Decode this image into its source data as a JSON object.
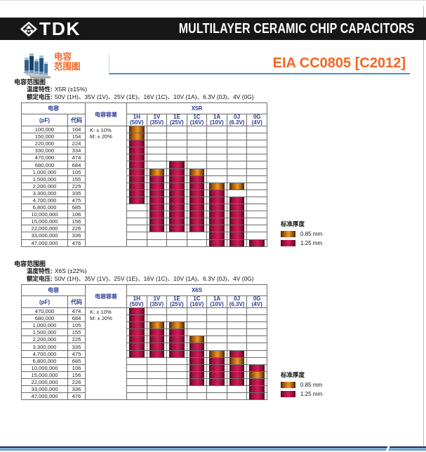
{
  "header": {
    "brand": "TDK",
    "bar_title": "MULTILAYER CERAMIC CHIP CAPACITORS"
  },
  "subheader": {
    "icon_caption_line1": "电容",
    "icon_caption_line2": "范围图",
    "page_title": "EIA CC0805 [C2012]"
  },
  "legend": {
    "title": "标准厚度",
    "items": [
      {
        "label": "0.85 mm",
        "key": "orange"
      },
      {
        "label": "1.25 mm",
        "key": "crimson"
      }
    ]
  },
  "colors": {
    "accent_orange": "#f26522",
    "header_navy": "#2b3a91",
    "thickness_085_orange": "#e1831c",
    "thickness_125_crimson": "#c91750",
    "header_bar_black": "#171717",
    "footer_blue": "#5c95c9"
  },
  "sections": [
    {
      "heading": "电容范围图",
      "lines": [
        {
          "label": "温度特性:",
          "value": "X5R (±15%)"
        },
        {
          "label": "额定电压:",
          "value": "50V (1H)、35V (1V)、25V (1E)、16V (1C)、10V (1A)、6.3V (0J)、4V (0G)"
        }
      ],
      "table": {
        "cap_header": "电容",
        "pf_header": "(pF)",
        "code_header": "代码",
        "tol_header": "电容容差",
        "series_header": "X5R",
        "volt_cols": [
          [
            "1H",
            "(50V)"
          ],
          [
            "1V",
            "(35V)"
          ],
          [
            "1E",
            "(25V)"
          ],
          [
            "1C",
            "(16V)"
          ],
          [
            "1A",
            "(10V)"
          ],
          [
            "0J",
            "(6.3V)"
          ],
          [
            "0G",
            "(4V)"
          ]
        ],
        "tolerances": [
          "K: ± 10%",
          "M: ± 20%"
        ],
        "rows": [
          [
            "100,000",
            "104"
          ],
          [
            "150,000",
            "154"
          ],
          [
            "220,000",
            "224"
          ],
          [
            "330,000",
            "334"
          ],
          [
            "470,000",
            "474"
          ],
          [
            "680,000",
            "684"
          ],
          [
            "1,000,000",
            "105"
          ],
          [
            "1,500,000",
            "155"
          ],
          [
            "2,200,000",
            "225"
          ],
          [
            "3,300,000",
            "335"
          ],
          [
            "4,700,000",
            "475"
          ],
          [
            "6,800,000",
            "685"
          ],
          [
            "10,000,000",
            "106"
          ],
          [
            "15,000,000",
            "156"
          ],
          [
            "22,000,000",
            "226"
          ],
          [
            "33,000,000",
            "336"
          ],
          [
            "47,000,000",
            "476"
          ]
        ],
        "bars": [
          {
            "col": 0,
            "segments": [
              {
                "from": 1,
                "to": 2,
                "thickness": "0.85"
              },
              {
                "from": 3,
                "to": 11,
                "thickness": "1.25"
              }
            ]
          },
          {
            "col": 1,
            "segments": [
              {
                "from": 7,
                "to": 7,
                "thickness": "0.85"
              },
              {
                "from": 8,
                "to": 15,
                "thickness": "1.25"
              }
            ]
          },
          {
            "col": 2,
            "segments": [
              {
                "from": 6,
                "to": 15,
                "thickness": "1.25"
              }
            ]
          },
          {
            "col": 3,
            "segments": [
              {
                "from": 7,
                "to": 7,
                "thickness": "0.85"
              },
              {
                "from": 8,
                "to": 15,
                "thickness": "1.25"
              }
            ]
          },
          {
            "col": 4,
            "segments": [
              {
                "from": 9,
                "to": 9,
                "thickness": "0.85"
              },
              {
                "from": 10,
                "to": 17,
                "thickness": "1.25"
              }
            ]
          },
          {
            "col": 5,
            "segments": [
              {
                "from": 9,
                "to": 9,
                "thickness": "0.85"
              },
              {
                "from": 11,
                "to": 17,
                "thickness": "1.25"
              }
            ]
          },
          {
            "col": 6,
            "segments": [
              {
                "from": 17,
                "to": 17,
                "thickness": "1.25"
              }
            ]
          }
        ]
      }
    },
    {
      "heading": "电容范围图",
      "lines": [
        {
          "label": "温度特性:",
          "value": "X6S (±22%)"
        },
        {
          "label": "额定电压:",
          "value": "50V (1H)、35V (1V)、25V (1E)、16V (1C)、10V (1A)、6.3V (0J)、4V (0G)"
        }
      ],
      "table": {
        "cap_header": "电容",
        "pf_header": "(pF)",
        "code_header": "代码",
        "tol_header": "电容容差",
        "series_header": "X6S",
        "volt_cols": [
          [
            "1H",
            "(50V)"
          ],
          [
            "1V",
            "(35V)"
          ],
          [
            "1E",
            "(25V)"
          ],
          [
            "1C",
            "(16V)"
          ],
          [
            "1A",
            "(10V)"
          ],
          [
            "0J",
            "(6.3V)"
          ],
          [
            "0G",
            "(4V)"
          ]
        ],
        "tolerances": [
          "K: ± 10%",
          "M: ± 20%"
        ],
        "rows": [
          [
            "470,000",
            "474"
          ],
          [
            "680,000",
            "684"
          ],
          [
            "1,000,000",
            "105"
          ],
          [
            "1,500,000",
            "155"
          ],
          [
            "2,200,000",
            "225"
          ],
          [
            "3,300,000",
            "335"
          ],
          [
            "4,700,000",
            "475"
          ],
          [
            "6,800,000",
            "685"
          ],
          [
            "10,000,000",
            "106"
          ],
          [
            "15,000,000",
            "156"
          ],
          [
            "22,000,000",
            "226"
          ],
          [
            "33,000,000",
            "336"
          ],
          [
            "47,000,000",
            "476"
          ]
        ],
        "bars": [
          {
            "col": 0,
            "segments": [
              {
                "from": 1,
                "to": 7,
                "thickness": "1.25"
              }
            ]
          },
          {
            "col": 1,
            "segments": [
              {
                "from": 3,
                "to": 3,
                "thickness": "0.85"
              },
              {
                "from": 4,
                "to": 7,
                "thickness": "1.25"
              }
            ]
          },
          {
            "col": 2,
            "segments": [
              {
                "from": 3,
                "to": 3,
                "thickness": "0.85"
              },
              {
                "from": 4,
                "to": 7,
                "thickness": "1.25"
              }
            ]
          },
          {
            "col": 3,
            "segments": [
              {
                "from": 5,
                "to": 5,
                "thickness": "0.85"
              },
              {
                "from": 6,
                "to": 11,
                "thickness": "1.25"
              }
            ]
          },
          {
            "col": 4,
            "segments": [
              {
                "from": 7,
                "to": 7,
                "thickness": "0.85"
              },
              {
                "from": 8,
                "to": 11,
                "thickness": "1.25"
              }
            ]
          },
          {
            "col": 5,
            "segments": [
              {
                "from": 7,
                "to": 7,
                "thickness": "1.25"
              },
              {
                "from": 8,
                "to": 8,
                "thickness": "0.85"
              },
              {
                "from": 9,
                "to": 11,
                "thickness": "1.25"
              }
            ]
          },
          {
            "col": 6,
            "segments": [
              {
                "from": 9,
                "to": 9,
                "thickness": "1.25"
              },
              {
                "from": 10,
                "to": 10,
                "thickness": "0.85"
              },
              {
                "from": 11,
                "to": 13,
                "thickness": "1.25"
              }
            ]
          }
        ]
      }
    }
  ]
}
